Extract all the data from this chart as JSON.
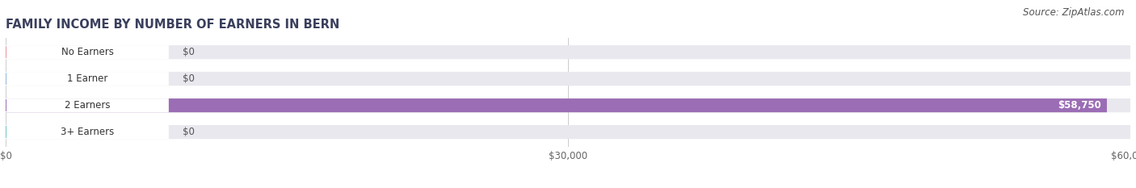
{
  "title": "FAMILY INCOME BY NUMBER OF EARNERS IN BERN",
  "source": "Source: ZipAtlas.com",
  "categories": [
    "No Earners",
    "1 Earner",
    "2 Earners",
    "3+ Earners"
  ],
  "values": [
    0,
    0,
    58750,
    0
  ],
  "max_value": 60000,
  "bar_colors": [
    "#e8959a",
    "#92b8dc",
    "#9b6db5",
    "#6ec5c2"
  ],
  "bar_bg_color": "#e8e8ee",
  "background_color": "#ffffff",
  "x_ticks": [
    0,
    30000,
    60000
  ],
  "x_tick_labels": [
    "$0",
    "$30,000",
    "$60,000"
  ],
  "title_fontsize": 10.5,
  "source_fontsize": 8.5,
  "title_color": "#3a3f5c",
  "source_color": "#555555"
}
